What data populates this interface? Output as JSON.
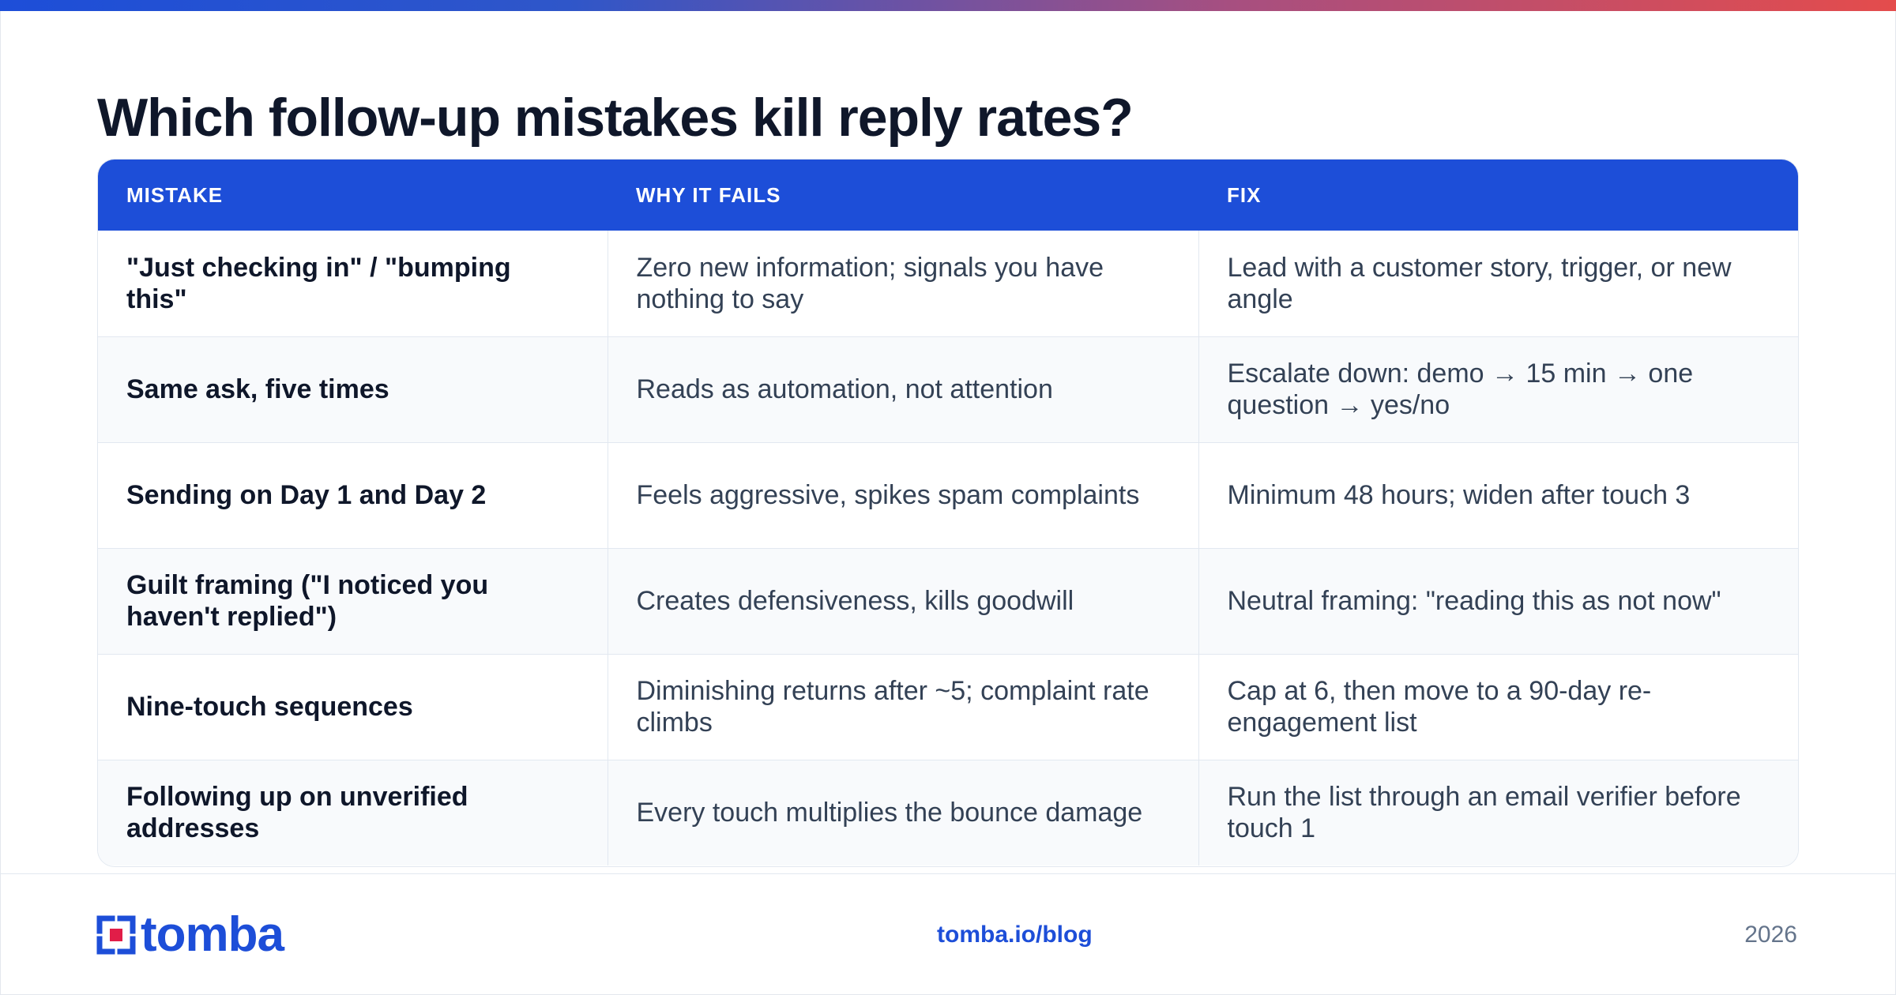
{
  "title": "Which follow-up mistakes kill reply rates?",
  "table": {
    "headers": [
      "MISTAKE",
      "WHY IT FAILS",
      "FIX"
    ],
    "rows": [
      [
        "\"Just checking in\" / \"bumping this\"",
        "Zero new information; signals you have nothing to say",
        "Lead with a customer story, trigger, or new angle"
      ],
      [
        "Same ask, five times",
        "Reads as automation, not attention",
        "Escalate down: demo → 15 min → one question → yes/no"
      ],
      [
        "Sending on Day 1 and Day 2",
        "Feels aggressive, spikes spam complaints",
        "Minimum 48 hours; widen after touch 3"
      ],
      [
        "Guilt framing (\"I noticed you haven't replied\")",
        "Creates defensiveness, kills goodwill",
        "Neutral framing: \"reading this as not now\""
      ],
      [
        "Nine-touch sequences",
        "Diminishing returns after ~5; complaint rate climbs",
        "Cap at 6, then move to a 90-day re-engagement list"
      ],
      [
        "Following up on unverified addresses",
        "Every touch multiplies the bounce damage",
        "Run the list through an email verifier before touch 1"
      ]
    ]
  },
  "footer": {
    "logo_text": "tomba",
    "blog_link": "tomba.io/blog",
    "year": "2026"
  },
  "colors": {
    "brand_blue": "#1d4ed8",
    "logo_red": "#e11d48",
    "title": "#0f172a"
  },
  "icons": [
    "tomba-logo-icon"
  ]
}
